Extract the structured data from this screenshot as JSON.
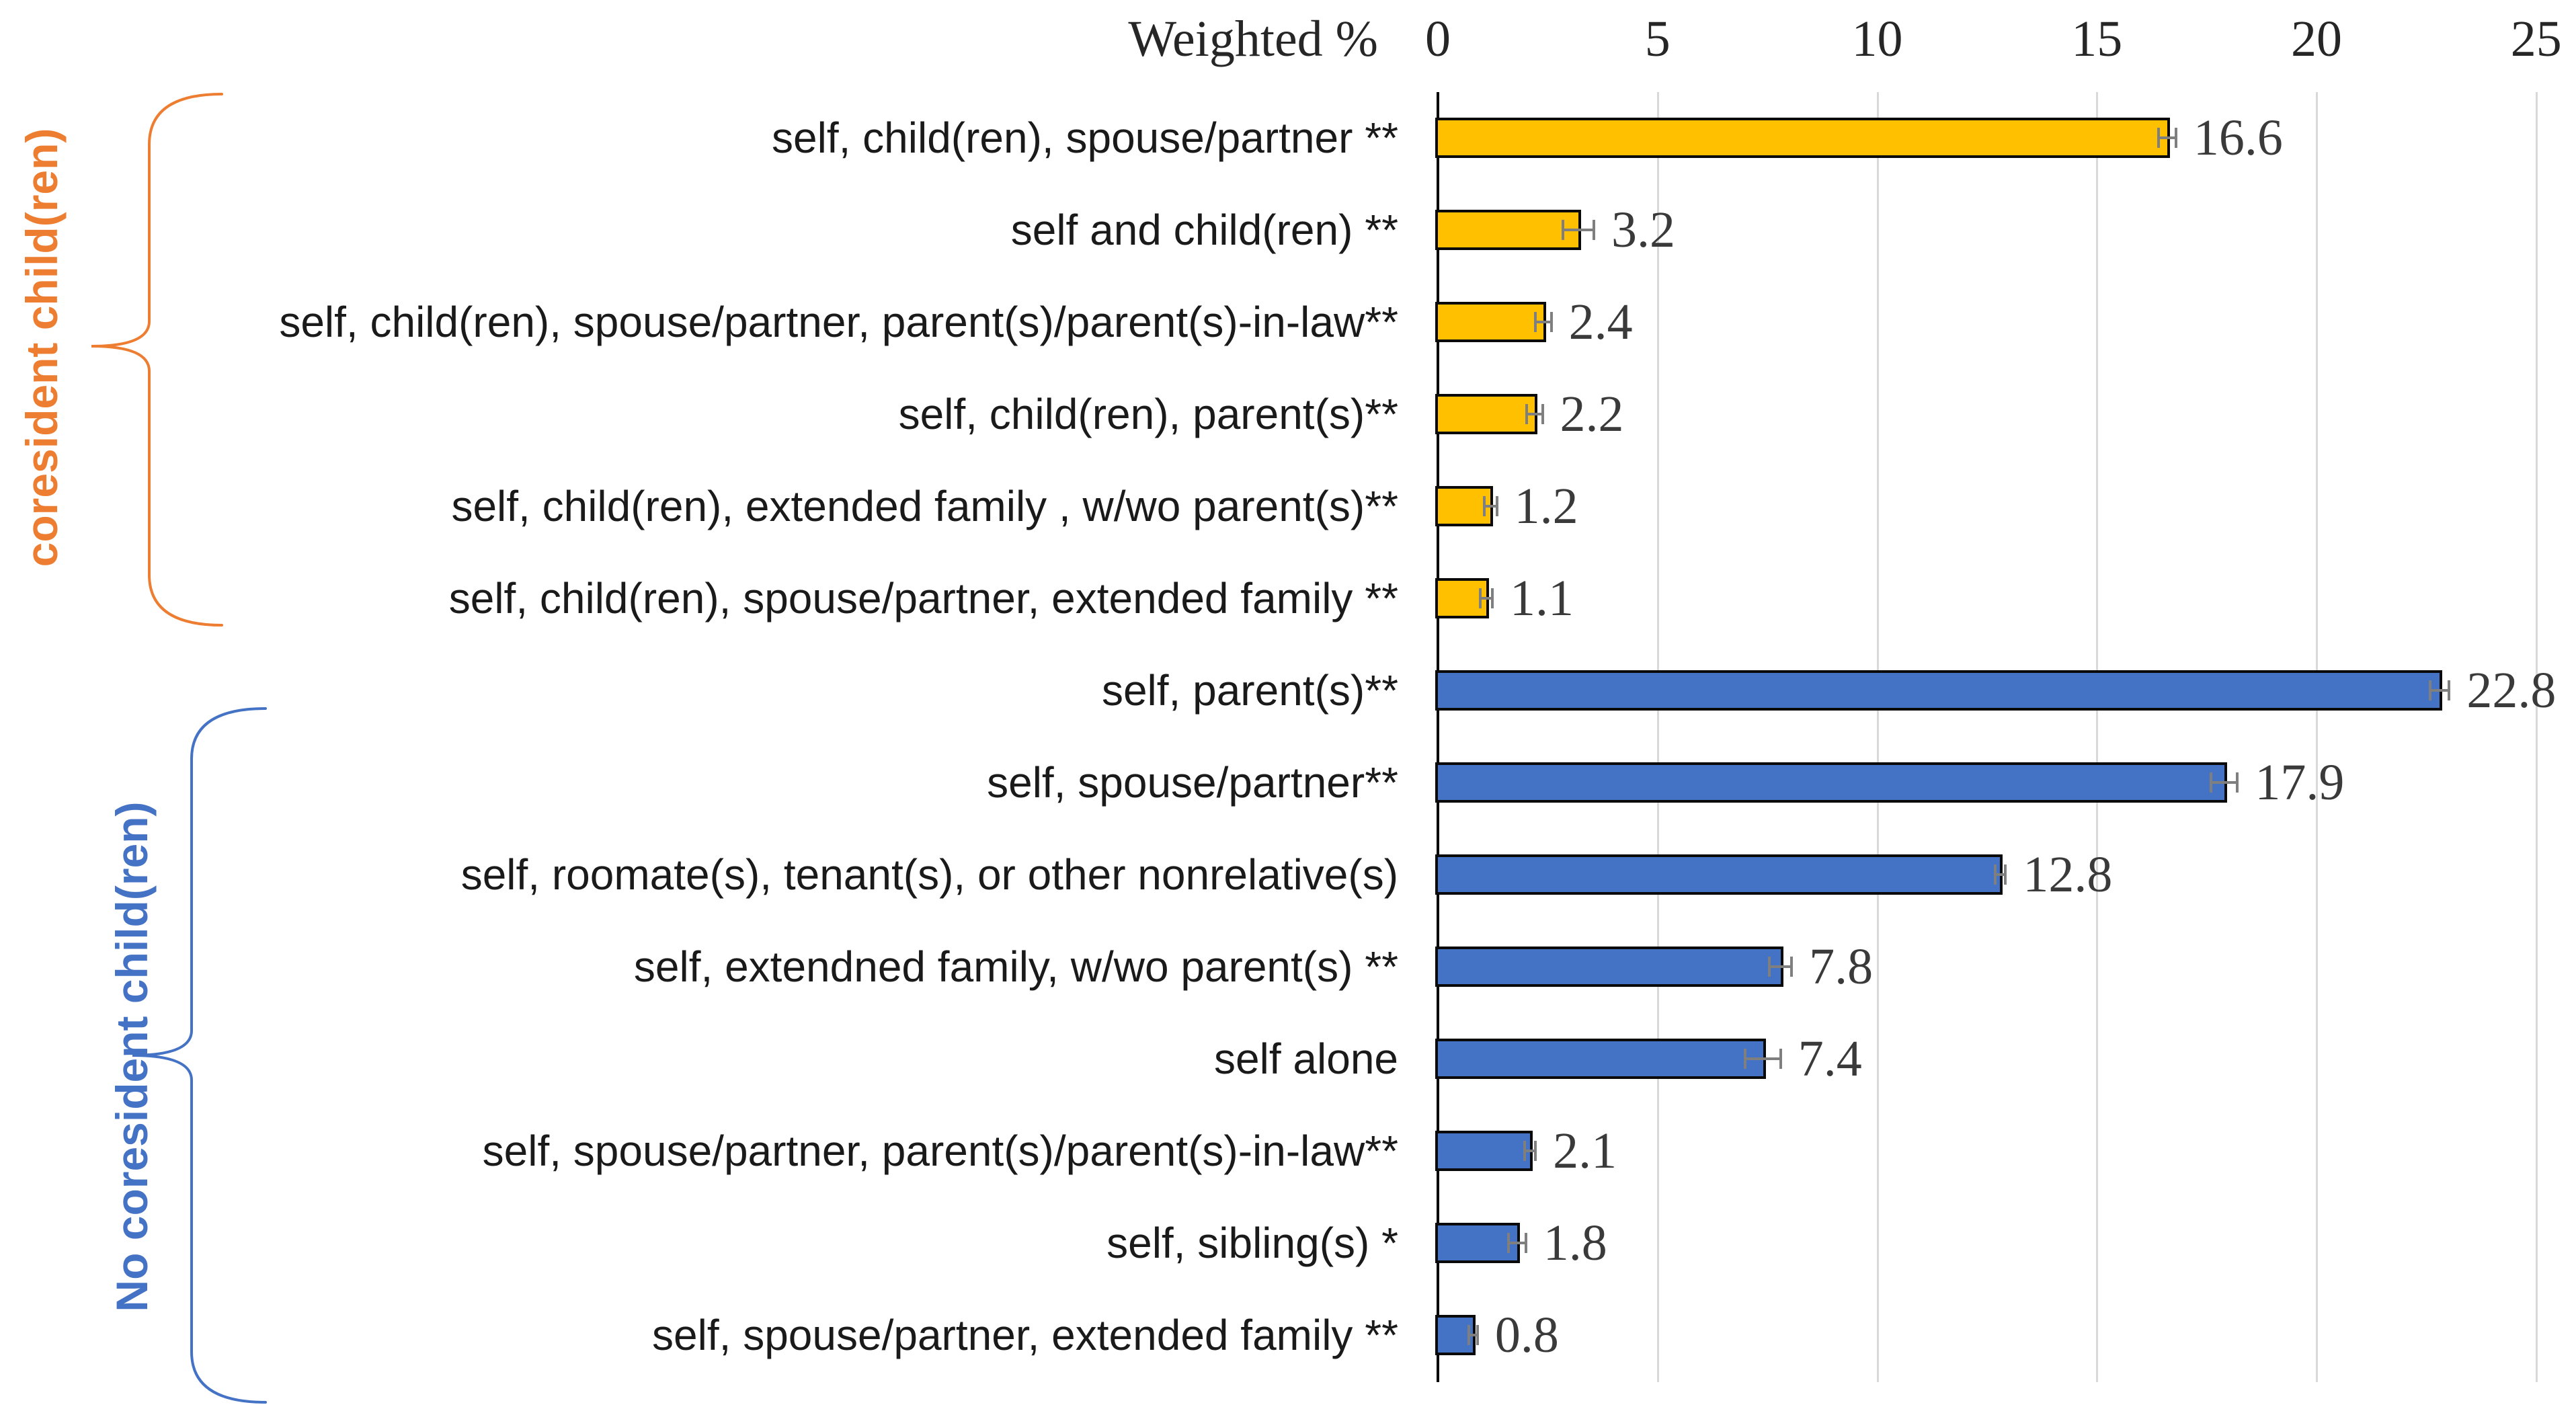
{
  "colors": {
    "gold": "#FFC000",
    "blue": "#4472C4",
    "orange_accent": "#ED7D31",
    "blue_accent": "#4472C4",
    "bar_border": "#0a0a0a",
    "error_bar": "#7f7f7f",
    "gridline": "#d9d9d9",
    "axis_line": "#000000",
    "value_text": "#3a3a3a",
    "category_text": "#1a1a1a"
  },
  "axis": {
    "title": "Weighted %",
    "ticks": [
      0,
      5,
      10,
      15,
      20,
      25
    ],
    "min": 0,
    "max": 25
  },
  "groups": [
    {
      "label": "coresident child(ren)",
      "accent": "#ED7D31",
      "bar_fill": "#FFC000"
    },
    {
      "label": "No coresident child(ren)",
      "accent": "#4472C4",
      "bar_fill": "#4472C4"
    }
  ],
  "chart_data": {
    "type": "bar",
    "orientation": "horizontal",
    "title": "",
    "xlabel": "Weighted %",
    "ylabel": "",
    "xlim": [
      0,
      25
    ],
    "gridlines_every": 5,
    "grid": true,
    "error_bars": true,
    "rows": [
      {
        "label": "self, child(ren), spouse/partner **",
        "value": 16.6,
        "value_label": "16.6",
        "error": 0.2,
        "group": 0
      },
      {
        "label": "self and child(ren) **",
        "value": 3.2,
        "value_label": "3.2",
        "error": 0.35,
        "group": 0
      },
      {
        "label": "self, child(ren), spouse/partner, parent(s)/parent(s)-in-law**",
        "value": 2.4,
        "value_label": "2.4",
        "error": 0.18,
        "group": 0
      },
      {
        "label": "self, child(ren), parent(s)**",
        "value": 2.2,
        "value_label": "2.2",
        "error": 0.18,
        "group": 0
      },
      {
        "label": "self, child(ren), extended family , w/wo parent(s)**",
        "value": 1.2,
        "value_label": "1.2",
        "error": 0.14,
        "group": 0
      },
      {
        "label": "self, child(ren), spouse/partner, extended family **",
        "value": 1.1,
        "value_label": "1.1",
        "error": 0.14,
        "group": 0
      },
      {
        "label": "self, parent(s)**",
        "value": 22.8,
        "value_label": "22.8",
        "error": 0.22,
        "group": 1
      },
      {
        "label": "self, spouse/partner**",
        "value": 17.9,
        "value_label": "17.9",
        "error": 0.3,
        "group": 1
      },
      {
        "label": "self, roomate(s), tenant(s), or other nonrelative(s)",
        "value": 12.8,
        "value_label": "12.8",
        "error": 0.12,
        "group": 1
      },
      {
        "label": "self, extendned family, w/wo parent(s) **",
        "value": 7.8,
        "value_label": "7.8",
        "error": 0.25,
        "group": 1
      },
      {
        "label": "self alone",
        "value": 7.4,
        "value_label": "7.4",
        "error": 0.4,
        "group": 1
      },
      {
        "label": "self, spouse/partner, parent(s)/parent(s)-in-law**",
        "value": 2.1,
        "value_label": "2.1",
        "error": 0.12,
        "group": 1
      },
      {
        "label": "self, sibling(s) *",
        "value": 1.8,
        "value_label": "1.8",
        "error": 0.2,
        "group": 1
      },
      {
        "label": "self, spouse/partner, extended family **",
        "value": 0.8,
        "value_label": "0.8",
        "error": 0.1,
        "group": 1
      }
    ]
  }
}
